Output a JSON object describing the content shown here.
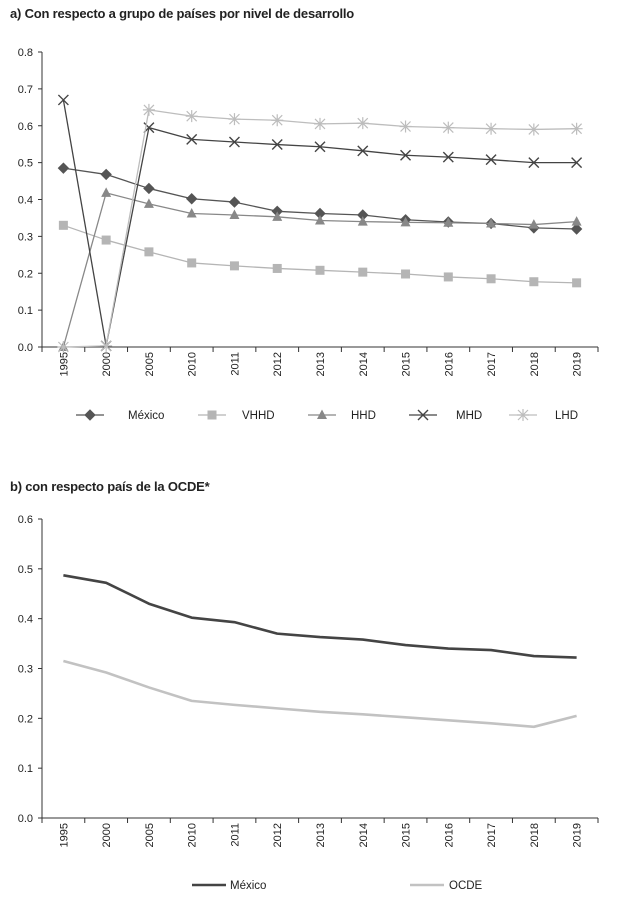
{
  "chart_data": [
    {
      "type": "line",
      "title": "a) Con respecto a grupo de países por nivel de desarrollo",
      "xlabel": "",
      "ylabel": "",
      "categories": [
        "1995",
        "2000",
        "2005",
        "2010",
        "2011",
        "2012",
        "2013",
        "2014",
        "2015",
        "2016",
        "2017",
        "2018",
        "2019"
      ],
      "ylim": [
        0,
        0.8
      ],
      "yticks": [
        "0.0",
        "0.1",
        "0.2",
        "0.3",
        "0.4",
        "0.5",
        "0.6",
        "0.7",
        "0.8"
      ],
      "legend_position": "bottom",
      "series": [
        {
          "name": "México",
          "color": "#555555",
          "marker": "diamond",
          "values": [
            0.485,
            0.468,
            0.43,
            0.402,
            0.393,
            0.368,
            0.362,
            0.358,
            0.345,
            0.339,
            0.335,
            0.323,
            0.32
          ]
        },
        {
          "name": "VHHD",
          "color": "#b5b5b5",
          "marker": "square",
          "values": [
            0.33,
            0.29,
            0.258,
            0.228,
            0.22,
            0.213,
            0.208,
            0.203,
            0.198,
            0.19,
            0.185,
            0.177,
            0.174
          ]
        },
        {
          "name": "HHD",
          "color": "#888888",
          "marker": "triangle",
          "values": [
            0.0,
            0.418,
            0.388,
            0.362,
            0.358,
            0.353,
            0.343,
            0.34,
            0.338,
            0.337,
            0.335,
            0.332,
            0.34
          ]
        },
        {
          "name": "MHD",
          "color": "#444444",
          "marker": "x",
          "values": [
            0.67,
            0.003,
            0.595,
            0.563,
            0.556,
            0.549,
            0.543,
            0.532,
            0.52,
            0.515,
            0.508,
            0.5,
            0.5
          ]
        },
        {
          "name": "LHD",
          "color": "#bdbdbd",
          "marker": "star",
          "values": [
            0.0,
            0.003,
            0.643,
            0.626,
            0.618,
            0.615,
            0.605,
            0.607,
            0.598,
            0.595,
            0.592,
            0.59,
            0.592
          ]
        }
      ]
    },
    {
      "type": "line",
      "title": "b) con respecto país de la OCDE*",
      "xlabel": "",
      "ylabel": "",
      "categories": [
        "1995",
        "2000",
        "2005",
        "2010",
        "2011",
        "2012",
        "2013",
        "2014",
        "2015",
        "2016",
        "2017",
        "2018",
        "2019"
      ],
      "ylim": [
        0,
        0.6
      ],
      "yticks": [
        "0.0",
        "0.1",
        "0.2",
        "0.3",
        "0.4",
        "0.5",
        "0.6"
      ],
      "legend_position": "bottom",
      "series": [
        {
          "name": "México",
          "color": "#444444",
          "marker": "none",
          "values": [
            0.487,
            0.472,
            0.43,
            0.402,
            0.393,
            0.37,
            0.363,
            0.358,
            0.347,
            0.34,
            0.337,
            0.325,
            0.322
          ]
        },
        {
          "name": "OCDE",
          "color": "#c2c2c2",
          "marker": "none",
          "values": [
            0.315,
            0.292,
            0.262,
            0.235,
            0.227,
            0.22,
            0.213,
            0.208,
            0.202,
            0.196,
            0.19,
            0.183,
            0.205
          ]
        }
      ]
    }
  ]
}
